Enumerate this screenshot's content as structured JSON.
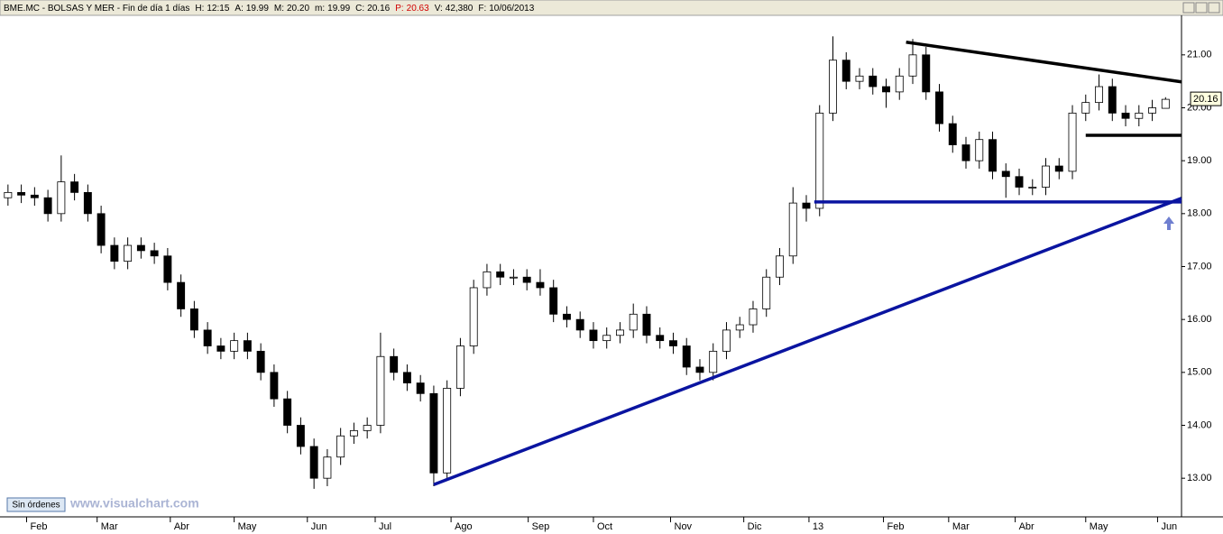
{
  "header": {
    "symbol": "BME.MC - BOLSAS Y MER - Fin de día 1 días",
    "fields": [
      {
        "label": "H:",
        "value": "12:15"
      },
      {
        "label": "A:",
        "value": "19.99"
      },
      {
        "label": "M:",
        "value": "20.20"
      },
      {
        "label": "m:",
        "value": "19.99"
      },
      {
        "label": "C:",
        "value": "20.16"
      },
      {
        "label": "P:",
        "value": "20.63"
      },
      {
        "label": "V:",
        "value": "42,380"
      },
      {
        "label": "F:",
        "value": "10/06/2013"
      }
    ]
  },
  "status_button": "Sin órdenes",
  "watermark": "www.visualchart.com",
  "chart_data": {
    "type": "candlestick",
    "up_color": "#ffffff",
    "down_color": "#000000",
    "edge_color": "#000000",
    "open": [
      18.3,
      18.4,
      18.35,
      18.3,
      18.0,
      18.6,
      18.4,
      18.0,
      17.4,
      17.1,
      17.4,
      17.3,
      17.2,
      16.7,
      16.2,
      15.8,
      15.5,
      15.4,
      15.6,
      15.4,
      15.0,
      14.5,
      14.0,
      13.6,
      13.0,
      13.4,
      13.8,
      13.9,
      14.0,
      15.3,
      15.0,
      14.8,
      14.6,
      13.1,
      14.7,
      15.5,
      16.6,
      16.9,
      16.8,
      16.8,
      16.7,
      16.6,
      16.1,
      16.0,
      15.8,
      15.6,
      15.7,
      15.8,
      16.1,
      15.7,
      15.6,
      15.5,
      15.1,
      15.0,
      15.4,
      15.8,
      15.9,
      16.2,
      16.8,
      17.2,
      18.2,
      18.1,
      19.9,
      20.9,
      20.5,
      20.6,
      20.4,
      20.3,
      20.6,
      21.0,
      20.3,
      19.7,
      19.3,
      19.0,
      19.4,
      18.8,
      18.7,
      18.5,
      18.5,
      18.9,
      18.8,
      19.9,
      20.1,
      20.4,
      19.9,
      19.8,
      19.9,
      19.99
    ],
    "high": [
      18.55,
      18.55,
      18.5,
      18.45,
      19.1,
      18.75,
      18.55,
      18.15,
      17.55,
      17.55,
      17.55,
      17.45,
      17.35,
      16.85,
      16.35,
      15.95,
      15.65,
      15.75,
      15.75,
      15.55,
      15.15,
      14.65,
      14.15,
      13.75,
      13.55,
      13.95,
      14.05,
      14.15,
      15.75,
      15.45,
      15.15,
      14.95,
      14.75,
      14.85,
      15.65,
      16.75,
      17.05,
      17.05,
      16.95,
      16.95,
      16.95,
      16.75,
      16.25,
      16.15,
      15.95,
      15.85,
      15.95,
      16.3,
      16.25,
      15.85,
      15.75,
      15.65,
      15.25,
      15.55,
      15.95,
      16.05,
      16.35,
      16.95,
      17.35,
      18.5,
      18.35,
      20.05,
      21.35,
      21.05,
      20.75,
      20.75,
      20.55,
      20.75,
      21.3,
      21.15,
      20.45,
      19.85,
      19.45,
      19.55,
      19.55,
      18.95,
      18.85,
      18.65,
      19.05,
      19.05,
      20.05,
      20.25,
      20.63,
      20.55,
      20.05,
      20.05,
      20.15,
      20.2
    ],
    "low": [
      18.15,
      18.2,
      18.15,
      17.85,
      17.85,
      18.25,
      17.85,
      17.25,
      16.95,
      16.95,
      17.15,
      17.05,
      16.55,
      16.05,
      15.65,
      15.35,
      15.25,
      15.25,
      15.25,
      14.85,
      14.35,
      13.85,
      13.45,
      12.8,
      12.85,
      13.25,
      13.65,
      13.75,
      13.85,
      14.85,
      14.65,
      14.45,
      12.85,
      12.95,
      14.55,
      15.35,
      16.45,
      16.65,
      16.65,
      16.55,
      16.45,
      15.95,
      15.85,
      15.65,
      15.45,
      15.45,
      15.55,
      15.65,
      15.55,
      15.45,
      15.35,
      14.95,
      14.85,
      14.85,
      15.25,
      15.65,
      15.75,
      16.05,
      16.65,
      17.05,
      17.85,
      17.95,
      19.75,
      20.35,
      20.35,
      20.25,
      20.0,
      20.15,
      20.45,
      20.15,
      19.55,
      19.15,
      18.85,
      18.85,
      18.65,
      18.3,
      18.35,
      18.35,
      18.35,
      18.65,
      18.65,
      19.75,
      19.95,
      19.75,
      19.65,
      19.65,
      19.75,
      19.99
    ],
    "close": [
      18.4,
      18.35,
      18.3,
      18.0,
      18.6,
      18.4,
      18.0,
      17.4,
      17.1,
      17.4,
      17.3,
      17.2,
      16.7,
      16.2,
      15.8,
      15.5,
      15.4,
      15.6,
      15.4,
      15.0,
      14.5,
      14.0,
      13.6,
      13.0,
      13.4,
      13.8,
      13.9,
      14.0,
      15.3,
      15.0,
      14.8,
      14.6,
      13.1,
      14.7,
      15.5,
      16.6,
      16.9,
      16.8,
      16.8,
      16.7,
      16.6,
      16.1,
      16.0,
      15.8,
      15.6,
      15.7,
      15.8,
      16.1,
      15.7,
      15.6,
      15.5,
      15.1,
      15.0,
      15.4,
      15.8,
      15.9,
      16.2,
      16.8,
      17.2,
      18.2,
      18.1,
      19.9,
      20.9,
      20.5,
      20.6,
      20.4,
      20.3,
      20.6,
      21.0,
      20.3,
      19.7,
      19.3,
      19.0,
      19.4,
      18.8,
      18.7,
      18.5,
      18.5,
      18.9,
      18.8,
      19.9,
      20.1,
      20.4,
      19.9,
      19.8,
      19.9,
      20.0,
      20.16
    ],
    "xlim": [
      -0.6,
      88.2
    ],
    "ylim": [
      12.27,
      21.73
    ],
    "xticks": [
      {
        "value": 1.4,
        "label": "Feb"
      },
      {
        "value": 6.7,
        "label": "Mar"
      },
      {
        "value": 12.2,
        "label": "Abr"
      },
      {
        "value": 17.0,
        "label": "May"
      },
      {
        "value": 22.5,
        "label": "Jun"
      },
      {
        "value": 27.6,
        "label": "Jul"
      },
      {
        "value": 33.3,
        "label": "Ago"
      },
      {
        "value": 39.1,
        "label": "Sep"
      },
      {
        "value": 44.0,
        "label": "Oct"
      },
      {
        "value": 49.8,
        "label": "Nov"
      },
      {
        "value": 55.3,
        "label": "Dic"
      },
      {
        "value": 60.2,
        "label": "13"
      },
      {
        "value": 65.8,
        "label": "Feb"
      },
      {
        "value": 70.7,
        "label": "Mar"
      },
      {
        "value": 75.7,
        "label": "Abr"
      },
      {
        "value": 81.0,
        "label": "May"
      },
      {
        "value": 86.4,
        "label": "Jun"
      }
    ],
    "yticks": [
      {
        "value": 13,
        "label": "13.00"
      },
      {
        "value": 14,
        "label": "14.00"
      },
      {
        "value": 15,
        "label": "15.00"
      },
      {
        "value": 16,
        "label": "16.00"
      },
      {
        "value": 17,
        "label": "17.00"
      },
      {
        "value": 18,
        "label": "18.00"
      },
      {
        "value": 19,
        "label": "19.00"
      },
      {
        "value": 20,
        "label": "20.00"
      },
      {
        "value": 21,
        "label": "21.00"
      }
    ],
    "lines": [
      {
        "color": "#000000",
        "x": [
          67.5,
          88.2
        ],
        "y": [
          21.24,
          20.49
        ]
      },
      {
        "color": "#000000",
        "x": [
          81.0,
          88.2
        ],
        "y": [
          19.48,
          19.48
        ]
      },
      {
        "color": "#0a14a0",
        "x": [
          60.6,
          88.2
        ],
        "y": [
          18.22,
          18.22
        ]
      },
      {
        "color": "#0a14a0",
        "x": [
          32.0,
          88.2
        ],
        "y": [
          12.88,
          18.29
        ]
      }
    ]
  }
}
